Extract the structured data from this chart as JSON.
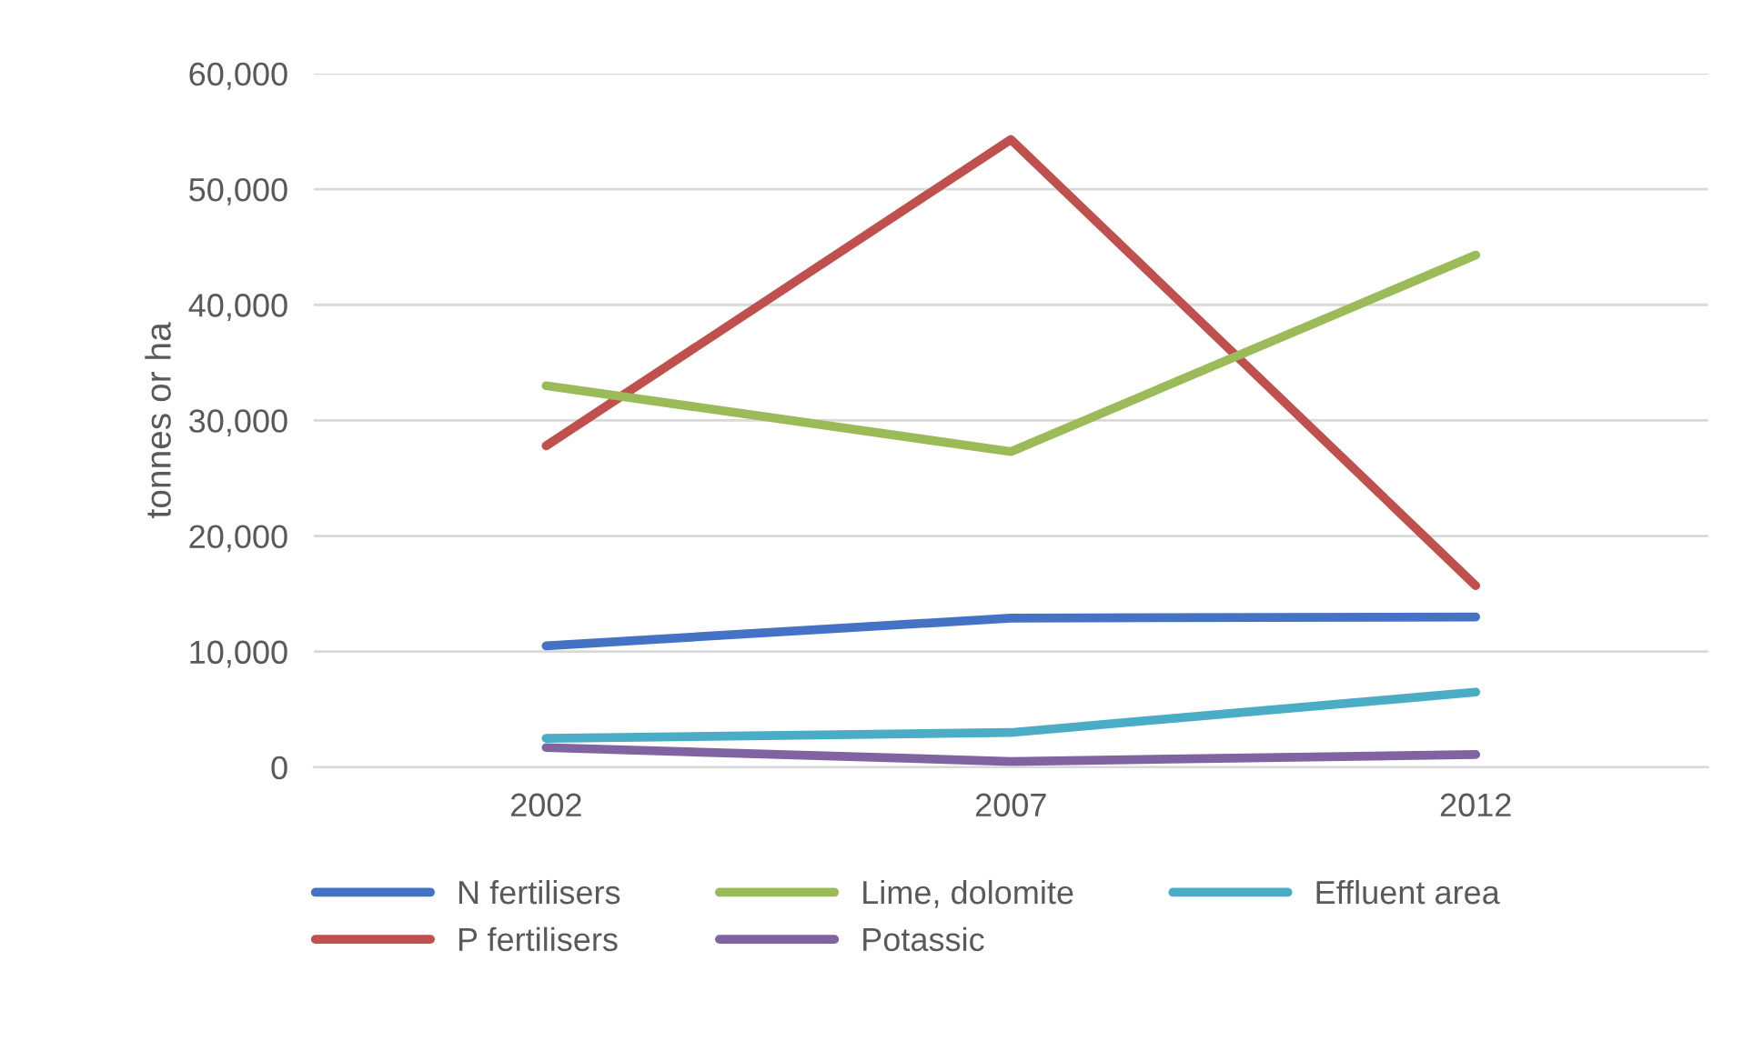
{
  "chart_data": {
    "type": "line",
    "ylabel": "tonnes or ha",
    "categories": [
      "2002",
      "2007",
      "2012"
    ],
    "series": [
      {
        "name": "N fertilisers",
        "color": "#4472c4",
        "values": [
          10500,
          12900,
          13000
        ]
      },
      {
        "name": "P fertilisers",
        "color": "#c0504d",
        "values": [
          27800,
          54300,
          15700
        ]
      },
      {
        "name": "Lime, dolomite",
        "color": "#9bbb59",
        "values": [
          33000,
          27300,
          44300
        ]
      },
      {
        "name": "Potassic",
        "color": "#8064a2",
        "values": [
          1700,
          500,
          1100
        ]
      },
      {
        "name": "Effluent area",
        "color": "#4bacc6",
        "values": [
          2500,
          3000,
          6500
        ]
      }
    ],
    "ylim": [
      0,
      60000
    ],
    "yticks": [
      0,
      {
        "value": 10000,
        "label": "10,000"
      },
      {
        "value": 20000,
        "label": "20,000"
      },
      {
        "value": 30000,
        "label": "30,000"
      },
      {
        "value": 40000,
        "label": "40,000"
      },
      {
        "value": 50000,
        "label": "50,000"
      },
      {
        "value": 60000,
        "label": "60,000"
      }
    ],
    "grid": "y",
    "legend": "bottom",
    "marker": "none",
    "line_style": "solid"
  }
}
